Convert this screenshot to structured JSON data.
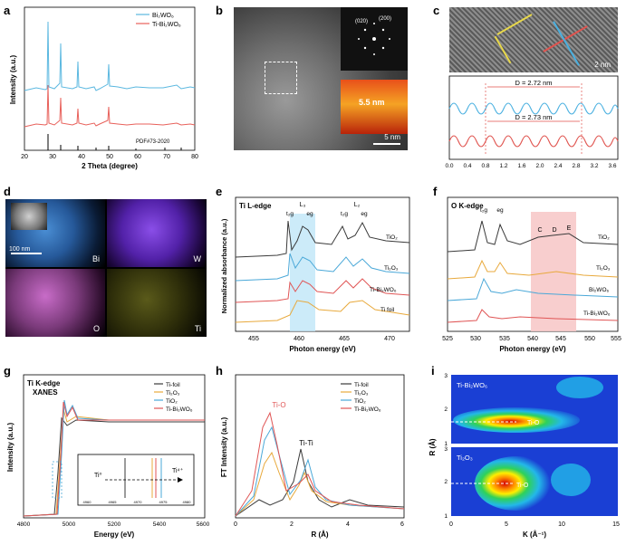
{
  "panels": {
    "a": {
      "label": "a",
      "ylabel": "Intensity (a.u.)",
      "xlabel": "2 Theta (degree)",
      "xticks": [
        "20",
        "30",
        "40",
        "50",
        "60",
        "70",
        "80"
      ],
      "legend": [
        "Bi₂WO₆",
        "Ti-Bi₂WO₆"
      ],
      "pdf_label": "PDF#73-2020",
      "colors": [
        "#5bb8e0",
        "#e8615b"
      ]
    },
    "b": {
      "label": "b",
      "inset_lattice": [
        "(020)",
        "(200)"
      ],
      "particle_size": "5.5 nm",
      "scale_bar": "5 nm"
    },
    "c": {
      "label": "c",
      "scale_bar": "2 nm",
      "d1": "D = 2.72 nm",
      "d2": "D = 2.73 nm",
      "xticks": [
        "0.0",
        "0.4",
        "0.8",
        "1.2",
        "1.6",
        "2.0",
        "2.4",
        "2.8",
        "3.2",
        "3.6"
      ]
    },
    "d": {
      "label": "d",
      "scale_bar": "100 nm",
      "elements": [
        "Bi",
        "W",
        "O",
        "Ti"
      ]
    },
    "e": {
      "label": "e",
      "title": "Ti L-edge",
      "ylabel": "Normalized absorbance (a.u.)",
      "xlabel": "Photon energy (eV)",
      "xticks": [
        "455",
        "460",
        "465",
        "470"
      ],
      "edge_labels": [
        "L₃",
        "L₂"
      ],
      "orbital_labels": [
        "t₂g",
        "eg",
        "t₂g",
        "eg"
      ],
      "series": [
        "TiO₂",
        "Ti₂O₃",
        "Ti-Bi₂WO₆",
        "Ti foil"
      ]
    },
    "f": {
      "label": "f",
      "title": "O K-edge",
      "xlabel": "Photon energy (eV)",
      "xticks": [
        "525",
        "530",
        "535",
        "540",
        "545",
        "550",
        "555"
      ],
      "orbital_labels": [
        "t₂g",
        "eg"
      ],
      "region_labels": [
        "C",
        "D",
        "E"
      ],
      "series": [
        "TiO₂",
        "Ti₂O₃",
        "Bi₂WO₆",
        "Ti-Bi₂WO₆"
      ]
    },
    "g": {
      "label": "g",
      "title": "Ti K-edge",
      "subtitle": "XANES",
      "ylabel": "Intensity (a.u.)",
      "xlabel": "Energy (eV)",
      "xticks": [
        "4800",
        "4900",
        "5000",
        "5100",
        "5200",
        "5300",
        "5400",
        "5500",
        "5600"
      ],
      "legend": [
        "Ti-foil",
        "Ti₂O₃",
        "TiO₂",
        "Ti-Bi₂WO₆"
      ],
      "inset_left": "Ti⁰",
      "inset_right": "Ti⁴⁺",
      "inset_ticks": [
        "4960",
        "4965",
        "4970",
        "4975",
        "4980"
      ]
    },
    "h": {
      "label": "h",
      "ylabel": "FT Intensity (a.u.)",
      "xlabel": "R (Å)",
      "xticks": [
        "0",
        "2",
        "4",
        "6"
      ],
      "legend": [
        "Ti-foil",
        "Ti₂O₃",
        "TiO₂",
        "Ti-Bi₂WO₆"
      ],
      "peak_labels": [
        "Ti-O",
        "Ti-Ti"
      ]
    },
    "i": {
      "label": "i",
      "ylabel": "R (Å)",
      "xlabel": "K (Å⁻¹)",
      "xticks": [
        "0",
        "5",
        "10",
        "15"
      ],
      "yticks": [
        "1",
        "2",
        "3"
      ],
      "top_title": "Ti-Bi₂WO₆",
      "bottom_title": "Ti₂O₃",
      "bond_label": "Ti-O"
    }
  },
  "colors": {
    "black": "#3a3a3a",
    "orange": "#e8a93c",
    "blue": "#4aa8d8",
    "red": "#e05555",
    "pink": "#c86cc8",
    "highlight_blue": "#bfe6f7",
    "highlight_pink": "#f7c9c9"
  }
}
